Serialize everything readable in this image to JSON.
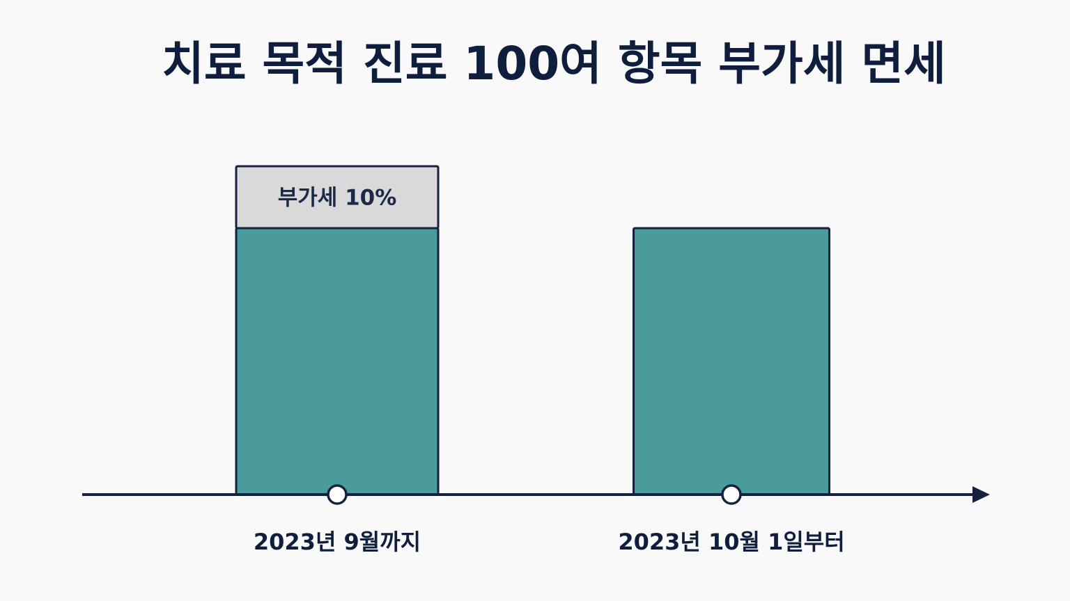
{
  "chart_data": {
    "type": "bar",
    "title": "치료 목적 진료 100여 항목 부가세 면세",
    "categories": [
      "2023년 9월까지",
      "2023년 10월 1일부터"
    ],
    "series": [
      {
        "segment": "base",
        "values": [
          100,
          100
        ]
      },
      {
        "segment": "vat",
        "label": "부가세 10%",
        "values": [
          10,
          0
        ]
      }
    ],
    "colors": {
      "base": "#4a9c9c",
      "vat": "#d9d9d9",
      "outline": "#15213f",
      "axis": "#15213f",
      "background": "#f9f9f9"
    },
    "axis": {
      "ticks": "circle markers at each category",
      "arrow": "right"
    },
    "legend": "none",
    "grid": false
  }
}
